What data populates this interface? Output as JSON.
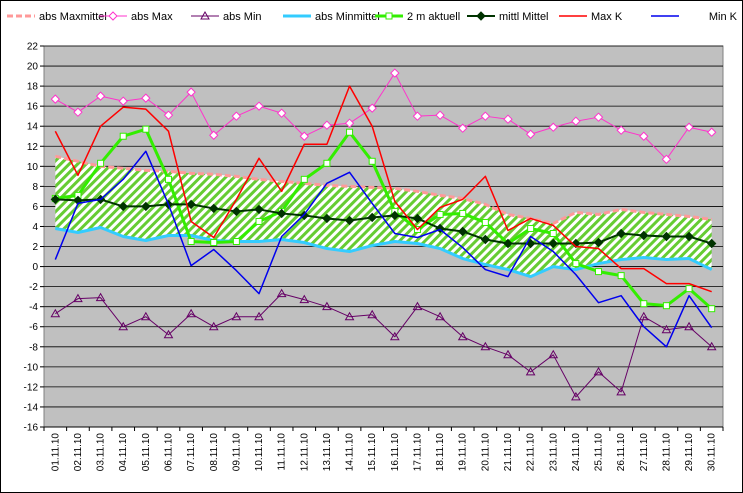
{
  "chart_data": {
    "type": "line",
    "title": "",
    "xlabel": "",
    "ylabel": "",
    "ylim": [
      -16,
      22
    ],
    "ytick_step": 2,
    "grid": true,
    "legend_position": "top",
    "categories": [
      "01.11.10",
      "02.11.10",
      "03.11.10",
      "04.11.10",
      "05.11.10",
      "06.11.10",
      "07.11.10",
      "08.11.10",
      "09.11.10",
      "10.11.10",
      "11.11.10",
      "12.11.10",
      "13.11.10",
      "14.11.10",
      "15.11.10",
      "16.11.10",
      "17.11.10",
      "18.11.10",
      "19.11.10",
      "20.11.10",
      "21.11.10",
      "22.11.10",
      "23.11.10",
      "24.11.10",
      "25.11.10",
      "26.11.10",
      "27.11.10",
      "28.11.10",
      "29.11.10",
      "30.11.10"
    ],
    "band": {
      "upper_series": "abs Maxmittel",
      "lower_series": "abs Minmittel",
      "fill": "#66cc33",
      "hatch_bg": "#ffffff"
    },
    "series": [
      {
        "name": "abs Maxmittel",
        "color": "#ff9999",
        "marker": "none",
        "width": 3,
        "values": [
          11.0,
          10.5,
          10.0,
          9.8,
          9.6,
          9.5,
          9.3,
          9.2,
          9.0,
          8.7,
          8.5,
          8.3,
          8.1,
          8.0,
          7.9,
          7.8,
          7.5,
          7.1,
          6.8,
          6.2,
          5.2,
          4.8,
          4.3,
          5.4,
          5.2,
          5.7,
          5.4,
          5.2,
          5.0,
          4.7
        ]
      },
      {
        "name": "abs Max",
        "color": "#ff33cc",
        "marker": "diamond-open",
        "width": 1,
        "values": [
          16.7,
          15.4,
          17.0,
          16.5,
          16.8,
          15.1,
          17.4,
          13.1,
          15.0,
          16.0,
          15.3,
          13.0,
          14.1,
          14.3,
          15.8,
          19.3,
          15.0,
          15.1,
          13.8,
          15.0,
          14.7,
          13.2,
          13.9,
          14.5,
          14.9,
          13.6,
          13.0,
          10.7,
          13.9,
          13.4
        ]
      },
      {
        "name": "abs Min",
        "color": "#660066",
        "marker": "triangle-open",
        "width": 1,
        "values": [
          -4.7,
          -3.2,
          -3.1,
          -6.0,
          -5.0,
          -6.8,
          -4.7,
          -6.0,
          -5.0,
          -5.0,
          -2.7,
          -3.3,
          -4.0,
          -5.0,
          -4.8,
          -7.0,
          -4.0,
          -5.0,
          -7.0,
          -8.0,
          -8.8,
          -10.5,
          -8.8,
          -13.0,
          -10.5,
          -12.5,
          -5.0,
          -6.3,
          -6.0,
          -8.0
        ]
      },
      {
        "name": "abs Minmittel",
        "color": "#33ccff",
        "marker": "none",
        "width": 3,
        "values": [
          3.8,
          3.4,
          3.9,
          3.0,
          2.6,
          3.1,
          3.1,
          2.6,
          2.5,
          2.5,
          2.7,
          2.4,
          1.8,
          1.5,
          2.1,
          2.5,
          2.3,
          1.8,
          0.8,
          0.2,
          -0.3,
          -1.0,
          0.0,
          -0.3,
          0.3,
          0.7,
          0.9,
          0.7,
          0.8,
          -0.3
        ]
      },
      {
        "name": "2 m aktuell",
        "color": "#33ee00",
        "marker": "square-open",
        "width": 3,
        "values": [
          6.8,
          7.1,
          10.3,
          13.0,
          13.7,
          8.7,
          2.5,
          2.4,
          2.5,
          4.5,
          5.5,
          8.7,
          10.3,
          13.4,
          10.5,
          5.5,
          3.7,
          5.2,
          5.3,
          4.4,
          2.3,
          3.8,
          3.3,
          0.3,
          -0.5,
          -0.9,
          -3.7,
          -3.9,
          -2.2,
          -4.2
        ]
      },
      {
        "name": "mittl Mittel",
        "color": "#003300",
        "marker": "diamond-filled",
        "width": 2,
        "values": [
          6.7,
          6.6,
          6.7,
          6.0,
          6.0,
          6.2,
          6.2,
          5.8,
          5.5,
          5.7,
          5.3,
          5.1,
          4.8,
          4.6,
          4.9,
          5.1,
          4.8,
          3.8,
          3.5,
          2.7,
          2.3,
          2.3,
          2.3,
          2.3,
          2.4,
          3.3,
          3.1,
          3.0,
          3.0,
          2.3
        ]
      },
      {
        "name": "Max K",
        "color": "#ff0000",
        "marker": "none",
        "width": 1.5,
        "values": [
          13.5,
          9.1,
          14.0,
          15.9,
          15.7,
          13.5,
          4.5,
          2.9,
          6.7,
          10.8,
          7.5,
          12.2,
          12.2,
          18.0,
          14.0,
          6.5,
          3.7,
          5.9,
          6.7,
          9.0,
          3.6,
          4.8,
          4.1,
          2.0,
          1.8,
          -0.2,
          -0.2,
          -1.7,
          -1.7,
          -2.5
        ]
      },
      {
        "name": "Min K",
        "color": "#0000ee",
        "marker": "none",
        "width": 1.5,
        "values": [
          0.7,
          6.3,
          6.7,
          8.7,
          11.5,
          6.2,
          0.1,
          1.7,
          -0.4,
          -2.7,
          3.0,
          5.2,
          8.3,
          9.4,
          6.3,
          3.3,
          2.9,
          3.7,
          1.9,
          -0.3,
          -1.0,
          3.0,
          1.5,
          -0.8,
          -3.6,
          -2.9,
          -6.0,
          -8.0,
          -2.9,
          -6.1
        ]
      }
    ]
  }
}
